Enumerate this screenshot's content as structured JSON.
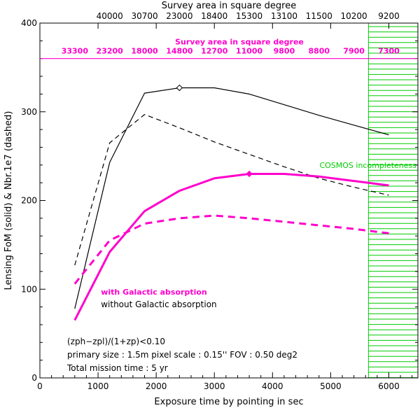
{
  "chart_data": {
    "type": "line",
    "xlabel": "Exposure time by pointing in sec",
    "ylabel": "Lensing FoM (solid) & Nbr.1e7 (dashed)",
    "xlim": [
      0,
      6500
    ],
    "ylim": [
      0,
      400
    ],
    "x_ticks": [
      0,
      1000,
      2000,
      3000,
      4000,
      5000,
      6000
    ],
    "y_ticks": [
      0,
      100,
      200,
      300,
      400
    ],
    "top_axis_title": "Survey area in square degree",
    "top_axis_ticks": [
      {
        "x": 1200,
        "label": "40000"
      },
      {
        "x": 1800,
        "label": "30700"
      },
      {
        "x": 2400,
        "label": "23000"
      },
      {
        "x": 3000,
        "label": "18400"
      },
      {
        "x": 3600,
        "label": "15300"
      },
      {
        "x": 4200,
        "label": "13100"
      },
      {
        "x": 4800,
        "label": "11500"
      },
      {
        "x": 5400,
        "label": "10200"
      },
      {
        "x": 6000,
        "label": "9200"
      }
    ],
    "inner_axis_title": "Survey area in square degree",
    "inner_axis_labels": [
      {
        "x": 600,
        "label": "33300"
      },
      {
        "x": 1200,
        "label": "23200"
      },
      {
        "x": 1800,
        "label": "18000"
      },
      {
        "x": 2400,
        "label": "14800"
      },
      {
        "x": 3000,
        "label": "12700"
      },
      {
        "x": 3600,
        "label": "11000"
      },
      {
        "x": 4200,
        "label": "9800"
      },
      {
        "x": 4800,
        "label": "8800"
      },
      {
        "x": 5400,
        "label": "7900"
      },
      {
        "x": 6000,
        "label": "7300"
      }
    ],
    "inner_axis_y": 360,
    "series": [
      {
        "style": "solid",
        "color": "#000000",
        "x": [
          600,
          1200,
          1800,
          2400,
          3000,
          3600,
          4200,
          4800,
          5400,
          6000
        ],
        "values": [
          78,
          243,
          321,
          327,
          327,
          320,
          308,
          296,
          285,
          274
        ],
        "marker_x": 2400,
        "marker_shape": "diamond"
      },
      {
        "style": "dashed",
        "color": "#000000",
        "x": [
          600,
          1200,
          1800,
          2400,
          3000,
          3600,
          4200,
          4800,
          5400,
          6000
        ],
        "values": [
          127,
          265,
          297,
          282,
          266,
          252,
          238,
          225,
          215,
          206
        ]
      },
      {
        "style": "solid",
        "color": "#ff00cc",
        "x": [
          600,
          1200,
          1800,
          2400,
          3000,
          3600,
          4200,
          4800,
          5400,
          6000
        ],
        "values": [
          65,
          142,
          188,
          211,
          225,
          230,
          230,
          227,
          222,
          217
        ],
        "marker_x": 3600,
        "marker_shape": "diamond"
      },
      {
        "style": "dashed",
        "color": "#ff00cc",
        "x": [
          600,
          1200,
          1800,
          2400,
          3000,
          3600,
          4200,
          4800,
          5400,
          6000
        ],
        "values": [
          106,
          155,
          174,
          180,
          183,
          180,
          176,
          172,
          168,
          163
        ]
      }
    ],
    "shaded_region": {
      "x_start": 5650,
      "x_end": 6500,
      "color": "#00cc00",
      "label": "COSMOS incompleteness",
      "label_y": 240
    },
    "annotations": [
      {
        "text": "with Galactic absorption",
        "color": "#ff00cc",
        "x": 1050,
        "y": 97,
        "bold": true
      },
      {
        "text": "without Galactic absorption",
        "color": "#000000",
        "x": 1050,
        "y": 83,
        "bold": false
      }
    ],
    "notes": [
      "(zph−zpl)/(1+zp)<0.10",
      "primary size : 1.5m pixel scale : 0.15'' FOV : 0.50 deg2",
      "Total mission time : 5 yr"
    ],
    "grid": false
  }
}
